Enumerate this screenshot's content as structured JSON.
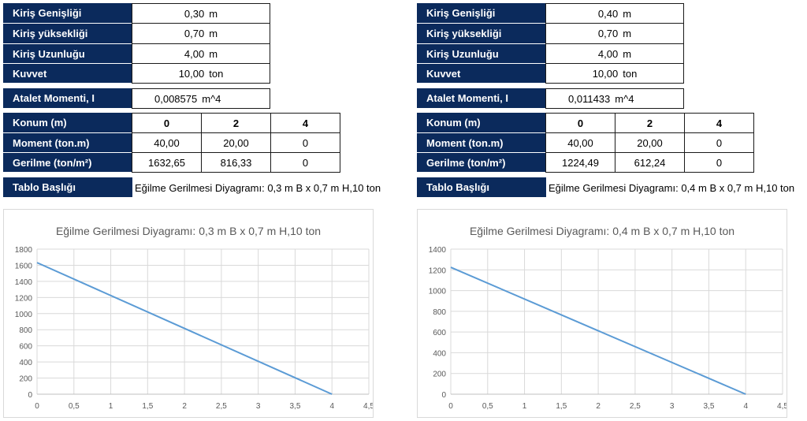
{
  "panels": [
    {
      "inputs": [
        {
          "label": "Kiriş Genişliği",
          "value": "0,30",
          "unit": "m"
        },
        {
          "label": "Kiriş yüksekliği",
          "value": "0,70",
          "unit": "m"
        },
        {
          "label": "Kiriş Uzunluğu",
          "value": "4,00",
          "unit": "m"
        },
        {
          "label": "Kuvvet",
          "value": "10,00",
          "unit": "ton"
        }
      ],
      "inertia": {
        "label": "Atalet Momenti, I",
        "value": "0,008575",
        "unit": "m^4"
      },
      "table": {
        "rows": [
          {
            "label": "Konum (m)",
            "cells": [
              "0",
              "2",
              "4"
            ]
          },
          {
            "label": "Moment (ton.m)",
            "cells": [
              "40,00",
              "20,00",
              "0"
            ]
          },
          {
            "label": "Gerilme (ton/m²)",
            "cells": [
              "1632,65",
              "816,33",
              "0"
            ]
          }
        ]
      },
      "chart_title_row": {
        "label": "Tablo Başlığı",
        "value": "Eğilme Gerilmesi Diyagramı: 0,3 m B x 0,7 m H,10 ton"
      },
      "chart_data": {
        "type": "line",
        "title": "Eğilme Gerilmesi Diyagramı: 0,3 m B x 0,7 m H,10 ton",
        "x": [
          0,
          2,
          4
        ],
        "series": [
          {
            "values": [
              1632.65,
              816.33,
              0
            ],
            "color": "#5b9bd5"
          }
        ],
        "xlim": [
          0,
          4.5
        ],
        "ylim": [
          0,
          1800
        ],
        "xticks": [
          "0",
          "0,5",
          "1",
          "1,5",
          "2",
          "2,5",
          "3",
          "3,5",
          "4",
          "4,5"
        ],
        "yticks": [
          "0",
          "200",
          "400",
          "600",
          "800",
          "1000",
          "1200",
          "1400",
          "1600",
          "1800"
        ],
        "grid": true
      }
    },
    {
      "inputs": [
        {
          "label": "Kiriş Genişliği",
          "value": "0,40",
          "unit": "m"
        },
        {
          "label": "Kiriş yüksekliği",
          "value": "0,70",
          "unit": "m"
        },
        {
          "label": "Kiriş Uzunluğu",
          "value": "4,00",
          "unit": "m"
        },
        {
          "label": "Kuvvet",
          "value": "10,00",
          "unit": "ton"
        }
      ],
      "inertia": {
        "label": "Atalet Momenti, I",
        "value": "0,011433",
        "unit": "m^4"
      },
      "table": {
        "rows": [
          {
            "label": "Konum (m)",
            "cells": [
              "0",
              "2",
              "4"
            ]
          },
          {
            "label": "Moment (ton.m)",
            "cells": [
              "40,00",
              "20,00",
              "0"
            ]
          },
          {
            "label": "Gerilme (ton/m²)",
            "cells": [
              "1224,49",
              "612,24",
              "0"
            ]
          }
        ]
      },
      "chart_title_row": {
        "label": "Tablo Başlığı",
        "value": "Eğilme Gerilmesi Diyagramı: 0,4 m B x 0,7 m H,10 ton"
      },
      "chart_data": {
        "type": "line",
        "title": "Eğilme Gerilmesi Diyagramı: 0,4 m B x 0,7 m H,10 ton",
        "x": [
          0,
          2,
          4
        ],
        "series": [
          {
            "values": [
              1224.49,
              612.24,
              0
            ],
            "color": "#5b9bd5"
          }
        ],
        "xlim": [
          0,
          4.5
        ],
        "ylim": [
          0,
          1400
        ],
        "xticks": [
          "0",
          "0,5",
          "1",
          "1,5",
          "2",
          "2,5",
          "3",
          "3,5",
          "4",
          "4,5"
        ],
        "yticks": [
          "0",
          "200",
          "400",
          "600",
          "800",
          "1000",
          "1200",
          "1400"
        ],
        "grid": true
      }
    }
  ],
  "colors": {
    "header_bg": "#0b2a5c",
    "line": "#5b9bd5",
    "grid": "#d9d9d9"
  }
}
